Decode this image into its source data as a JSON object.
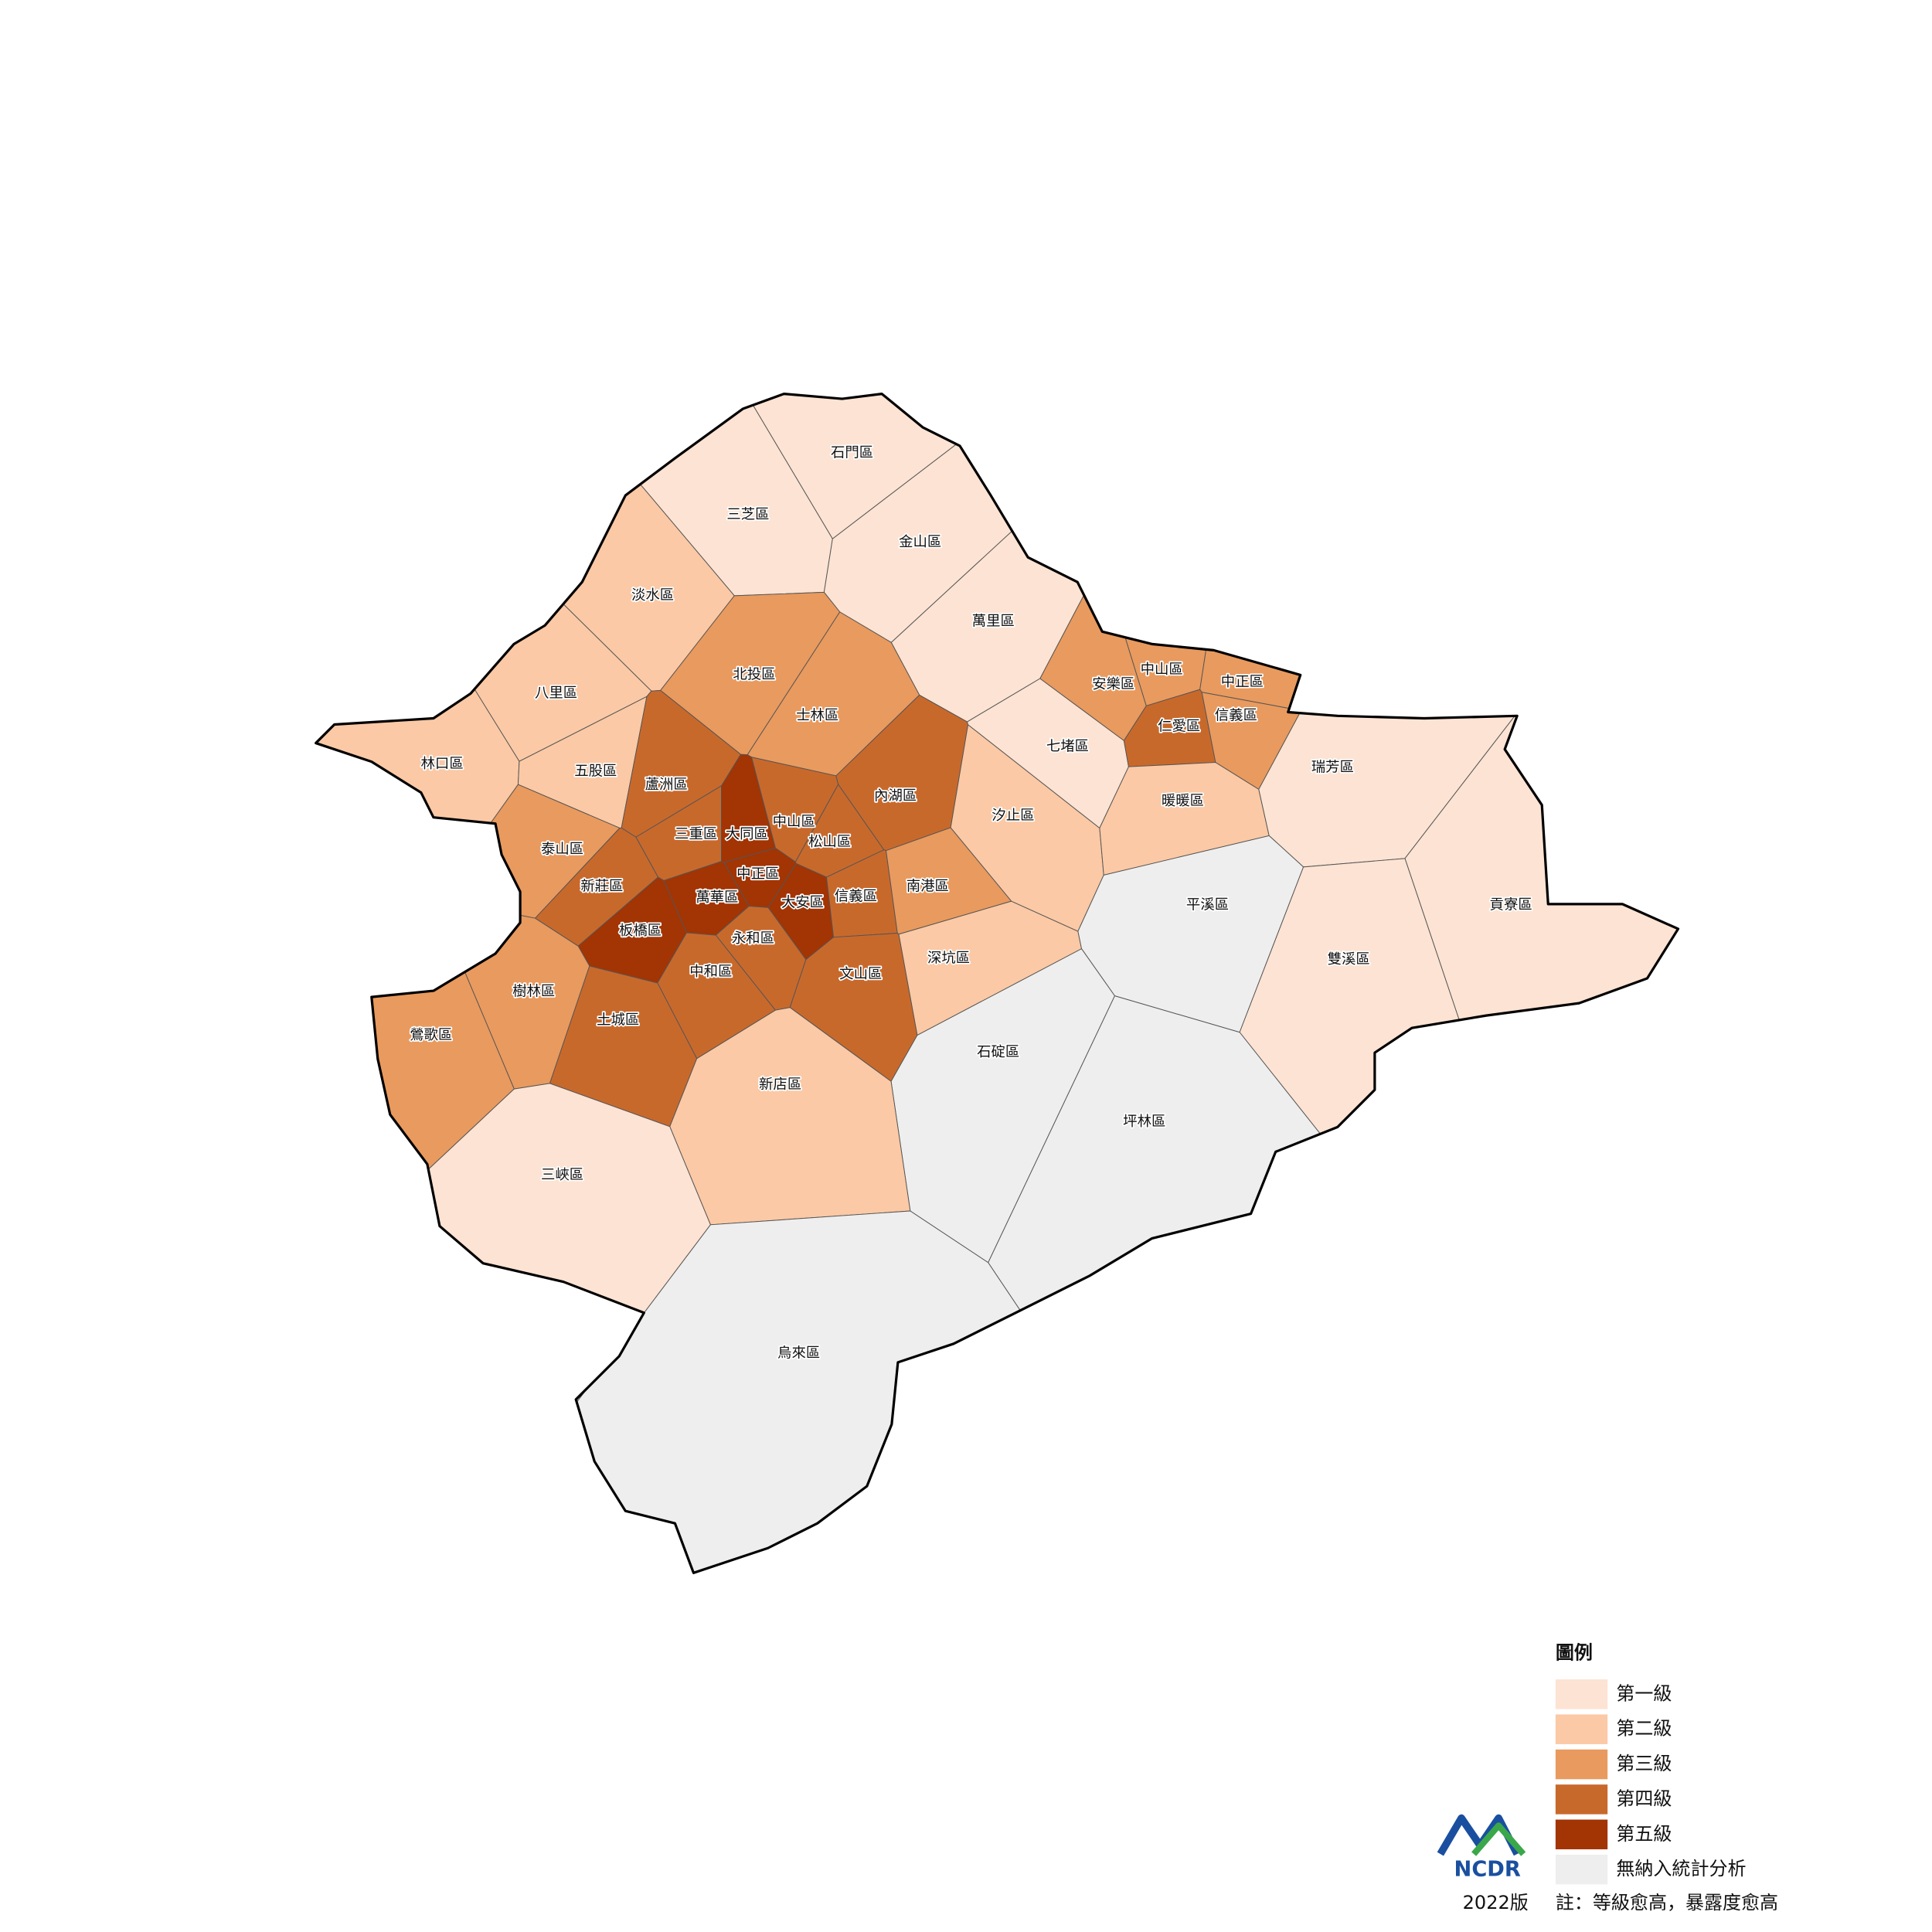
{
  "map": {
    "districts": [
      {
        "name": "石門區",
        "color": "#fde3d3"
      },
      {
        "name": "三芝區",
        "color": "#fde3d3"
      },
      {
        "name": "金山區",
        "color": "#fde3d3"
      },
      {
        "name": "萬里區",
        "color": "#fde3d3"
      },
      {
        "name": "淡水區",
        "color": "#fbc9a5"
      },
      {
        "name": "八里區",
        "color": "#fbc9a5"
      },
      {
        "name": "林口區",
        "color": "#fbc9a5"
      },
      {
        "name": "五股區",
        "color": "#fbc9a5"
      },
      {
        "name": "北投區",
        "color": "#e99a5e"
      },
      {
        "name": "士林區",
        "color": "#e99a5e"
      },
      {
        "name": "蘆洲區",
        "color": "#c8692c"
      },
      {
        "name": "泰山區",
        "color": "#e99a5e"
      },
      {
        "name": "三重區",
        "color": "#c8692c"
      },
      {
        "name": "大同區",
        "color": "#a33403"
      },
      {
        "name": "中山區",
        "color": "#c8692c"
      },
      {
        "name": "松山區",
        "color": "#c8692c"
      },
      {
        "name": "內湖區",
        "color": "#c8692c"
      },
      {
        "name": "新莊區",
        "color": "#c8692c"
      },
      {
        "name": "中正區",
        "color": "#a33403"
      },
      {
        "name": "萬華區",
        "color": "#a33403"
      },
      {
        "name": "大安區",
        "color": "#a33403"
      },
      {
        "name": "信義區",
        "color": "#c8692c"
      },
      {
        "name": "南港區",
        "color": "#e99a5e"
      },
      {
        "name": "板橋區",
        "color": "#a33403"
      },
      {
        "name": "永和區",
        "color": "#c8692c"
      },
      {
        "name": "中和區",
        "color": "#c8692c"
      },
      {
        "name": "文山區",
        "color": "#c8692c"
      },
      {
        "name": "樹林區",
        "color": "#e99a5e"
      },
      {
        "name": "土城區",
        "color": "#c8692c"
      },
      {
        "name": "鶯歌區",
        "color": "#e99a5e"
      },
      {
        "name": "深坑區",
        "color": "#fbc9a5"
      },
      {
        "name": "汐止區",
        "color": "#fbc9a5"
      },
      {
        "name": "七堵區",
        "color": "#fde3d3"
      },
      {
        "name": "安樂區",
        "color": "#e99a5e"
      },
      {
        "name": "中山區",
        "color": "#e99a5e"
      },
      {
        "name": "中正區",
        "color": "#e99a5e"
      },
      {
        "name": "仁愛區",
        "color": "#c8692c"
      },
      {
        "name": "信義區",
        "color": "#e99a5e"
      },
      {
        "name": "暖暖區",
        "color": "#fbc9a5"
      },
      {
        "name": "瑞芳區",
        "color": "#fde3d3"
      },
      {
        "name": "平溪區",
        "color": "#eeeeee"
      },
      {
        "name": "貢寮區",
        "color": "#fde3d3"
      },
      {
        "name": "雙溪區",
        "color": "#fde3d3"
      },
      {
        "name": "石碇區",
        "color": "#eeeeee"
      },
      {
        "name": "坪林區",
        "color": "#eeeeee"
      },
      {
        "name": "新店區",
        "color": "#fbc9a5"
      },
      {
        "name": "三峽區",
        "color": "#fde3d3"
      },
      {
        "name": "烏來區",
        "color": "#eeeeee"
      }
    ]
  },
  "legend": {
    "title": "圖例",
    "items": [
      {
        "label": "第一級",
        "color": "#fde3d3"
      },
      {
        "label": "第二級",
        "color": "#fbc9a5"
      },
      {
        "label": "第三級",
        "color": "#e99a5e"
      },
      {
        "label": "第四級",
        "color": "#c8692c"
      },
      {
        "label": "第五級",
        "color": "#a33403"
      },
      {
        "label": "無納入統計分析",
        "color": "#eeeeee"
      }
    ]
  },
  "logo": "NCDR",
  "footer": {
    "edition": "2022版",
    "note": "註：等級愈高，暴露度愈高"
  }
}
